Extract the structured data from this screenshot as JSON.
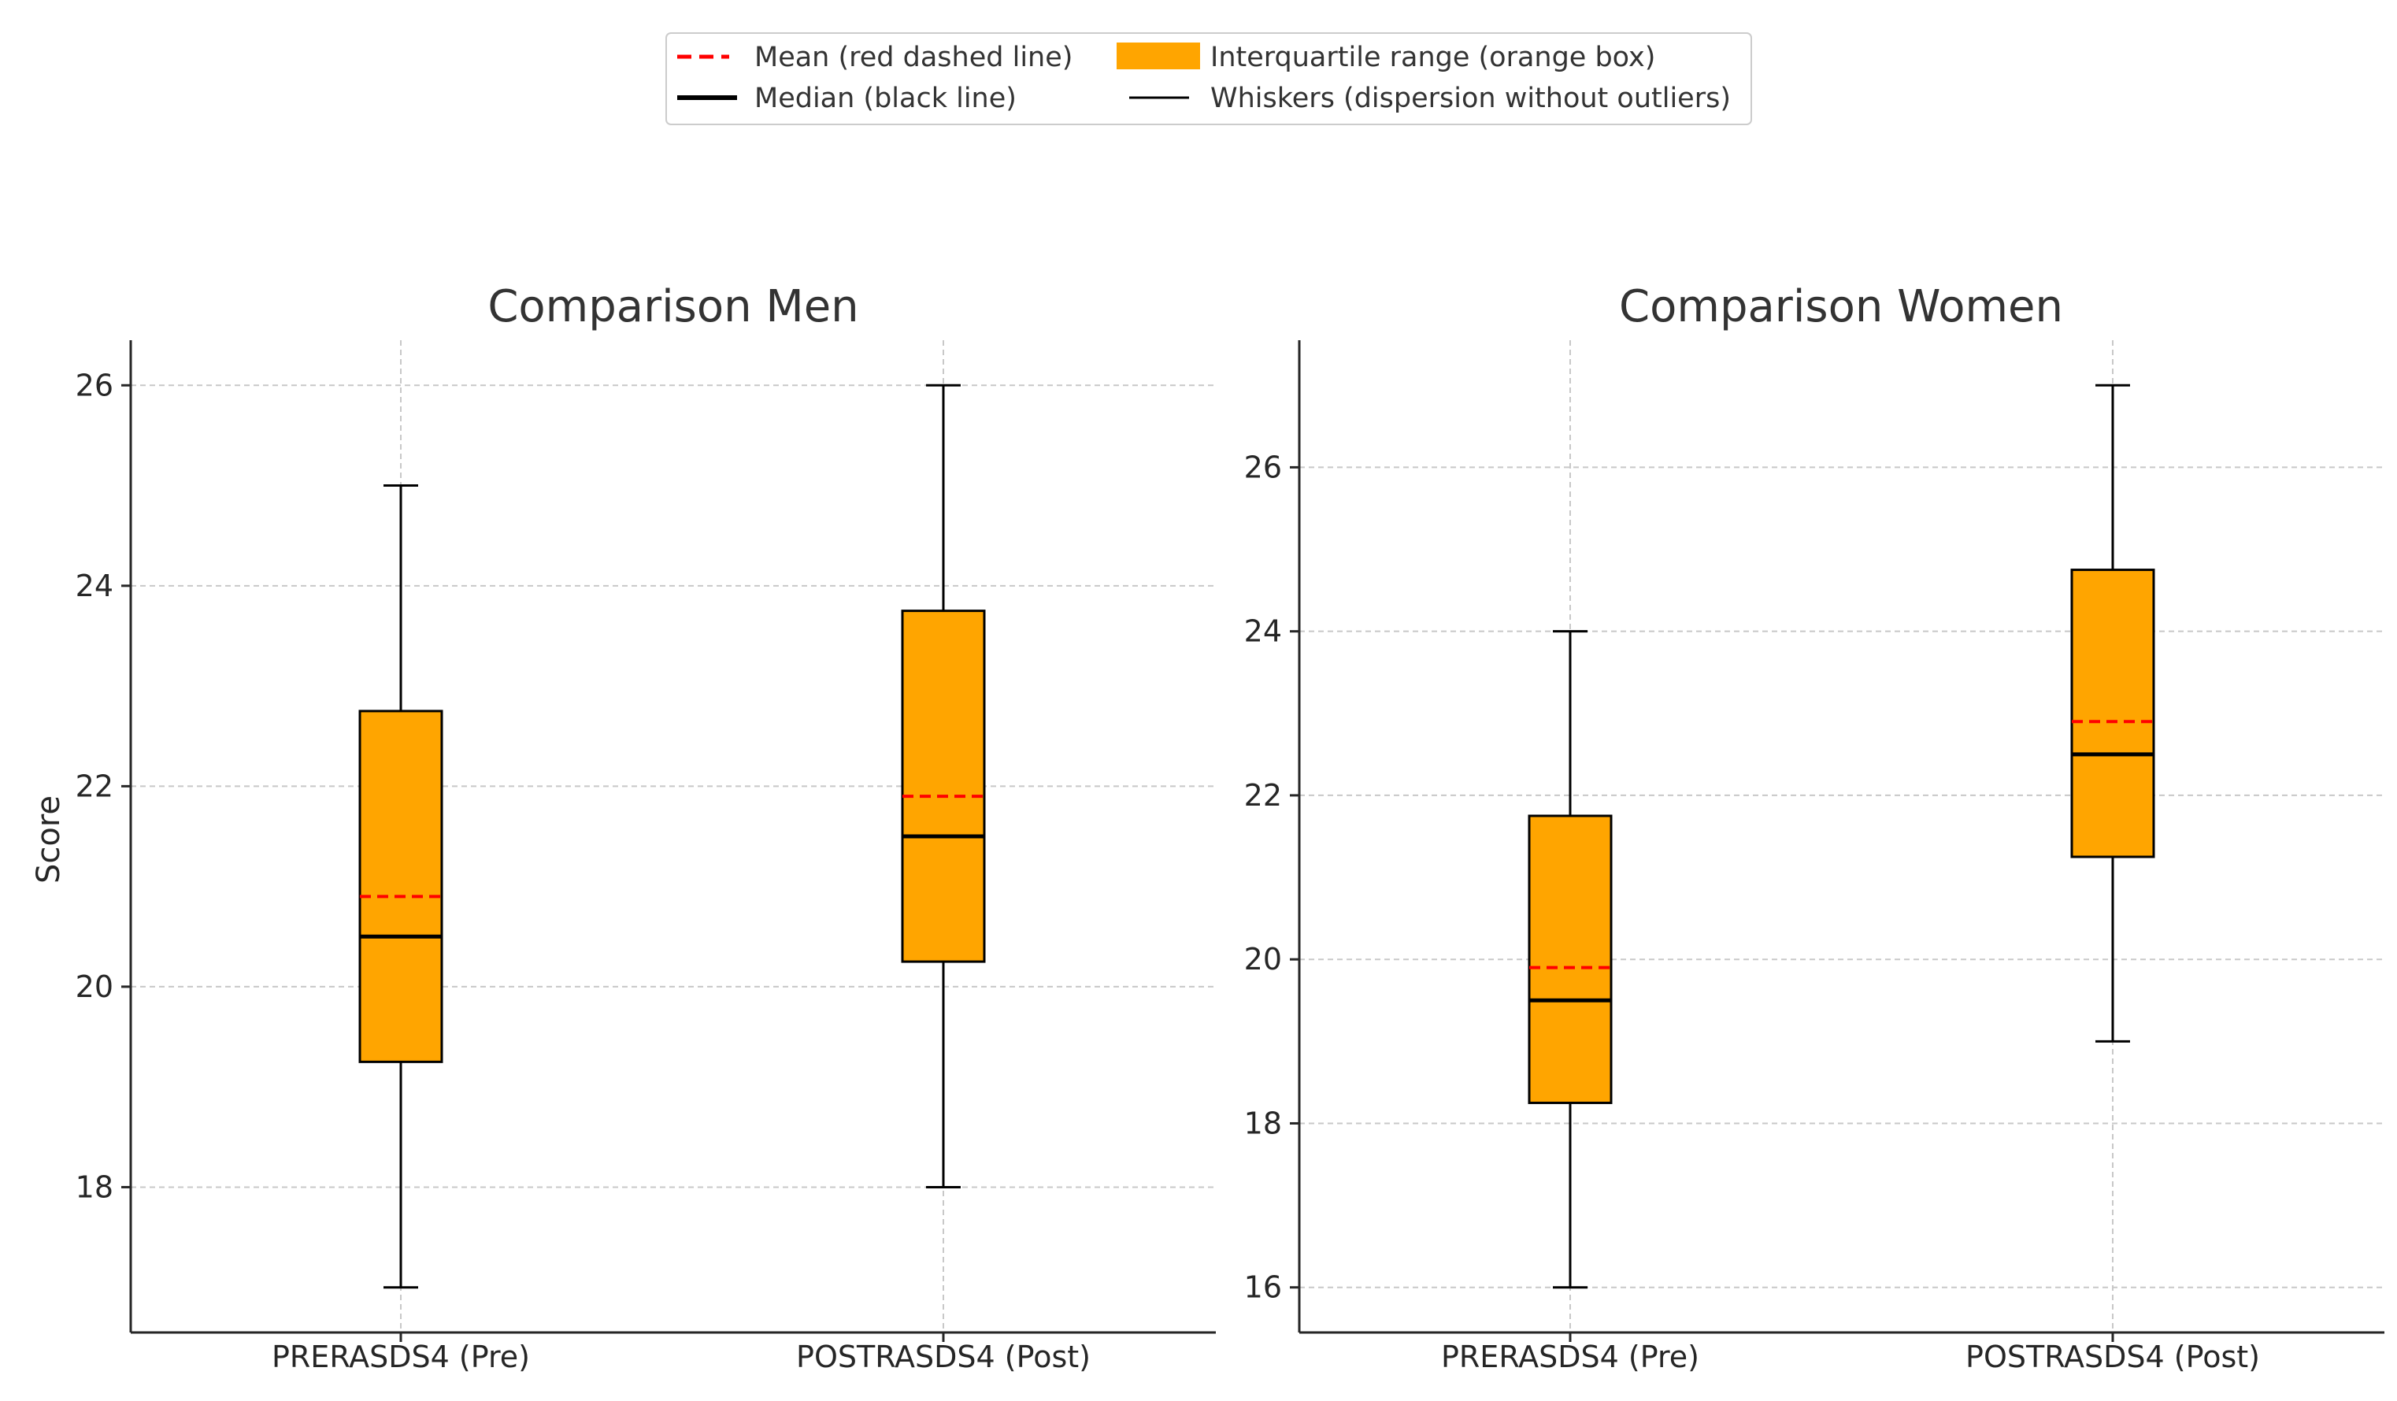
{
  "legend": {
    "entries": [
      {
        "key": "mean",
        "label": "Mean (red dashed line)"
      },
      {
        "key": "iqr",
        "label": "Interquartile range (orange box)"
      },
      {
        "key": "median",
        "label": "Median (black line)"
      },
      {
        "key": "whiskers",
        "label": "Whiskers (dispersion without outliers)"
      }
    ]
  },
  "colors": {
    "box_fill": "#FFA500",
    "mean": "#FF0000",
    "median": "#000000",
    "whisker": "#000000",
    "grid": "#c8c8c8"
  },
  "chart_data": [
    {
      "type": "boxplot",
      "title": "Comparison Men",
      "xlabel": "",
      "ylabel": "Score",
      "ylim": [
        16.55,
        26.45
      ],
      "yticks": [
        18,
        20,
        22,
        24,
        26
      ],
      "grid": true,
      "categories": [
        "PRERASDS4 (Pre)",
        "POSTRASDS4 (Post)"
      ],
      "boxes": [
        {
          "category": "PRERASDS4 (Pre)",
          "whisker_low": 17,
          "q1": 19.25,
          "median": 20.5,
          "mean": 20.9,
          "q3": 22.75,
          "whisker_high": 25
        },
        {
          "category": "POSTRASDS4 (Post)",
          "whisker_low": 18,
          "q1": 20.25,
          "median": 21.5,
          "mean": 21.9,
          "q3": 23.75,
          "whisker_high": 26
        }
      ]
    },
    {
      "type": "boxplot",
      "title": "Comparison Women",
      "xlabel": "",
      "ylabel": "",
      "ylim": [
        15.45,
        27.55
      ],
      "yticks": [
        16,
        18,
        20,
        22,
        24,
        26
      ],
      "grid": true,
      "categories": [
        "PRERASDS4 (Pre)",
        "POSTRASDS4 (Post)"
      ],
      "boxes": [
        {
          "category": "PRERASDS4 (Pre)",
          "whisker_low": 16,
          "q1": 18.25,
          "median": 19.5,
          "mean": 19.9,
          "q3": 21.75,
          "whisker_high": 24
        },
        {
          "category": "POSTRASDS4 (Post)",
          "whisker_low": 19,
          "q1": 21.25,
          "median": 22.5,
          "mean": 22.9,
          "q3": 24.75,
          "whisker_high": 27
        }
      ]
    }
  ]
}
